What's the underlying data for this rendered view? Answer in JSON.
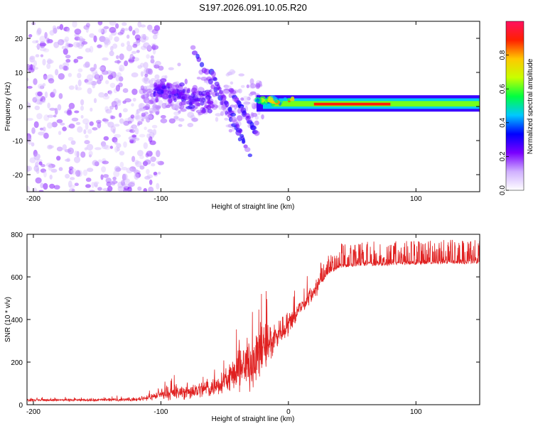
{
  "figure_title": "S197.2026.091.10.05.R20",
  "chart_data": [
    {
      "type": "heatmap",
      "title": "S197.2026.091.10.05.R20",
      "xlabel": "Height of straight line (km)",
      "ylabel": "Frequency (Hz)",
      "xlim": [
        -205,
        150
      ],
      "ylim": [
        -25,
        25
      ],
      "x_ticks": [
        -200,
        -100,
        0,
        100
      ],
      "x_tick_labels": [
        "-200",
        "-100",
        "0",
        "100"
      ],
      "y_ticks": [
        -20,
        -10,
        0,
        10,
        20
      ],
      "y_tick_labels": [
        "-20",
        "-10",
        "0",
        "10",
        "20"
      ],
      "description_data": {
        "carrier_line_frequency_hz": 0.7,
        "carrier_start_km": -25,
        "diffuse_scatter_region_km": [
          -205,
          -110
        ],
        "sloped_streaks": [
          {
            "x_start": -75,
            "f_start": 17,
            "x_end": -30,
            "f_end": -14
          },
          {
            "x_start": -60,
            "f_start": 10,
            "x_end": -35,
            "f_end": -10
          },
          {
            "x_start": -45,
            "f_start": 5,
            "x_end": -25,
            "f_end": -8
          }
        ]
      },
      "colorbar": {
        "label": "Normalized spectral amplitude",
        "min": 0.0,
        "max": 1.0,
        "ticks": [
          0.0,
          0.2,
          0.4,
          0.6,
          0.8
        ],
        "tick_labels": [
          "0.0",
          "0.2",
          "0.4",
          "0.6",
          "0.8"
        ],
        "colormap": [
          "#ffffff",
          "#d0b0ff",
          "#7a00ff",
          "#0000ff",
          "#00c8ff",
          "#00ff40",
          "#c8ff00",
          "#ffc800",
          "#ff2000",
          "#ff1060"
        ]
      }
    },
    {
      "type": "line",
      "xlabel": "Height of straight line (km)",
      "ylabel": "SNR (10 * v/v)",
      "xlim": [
        -205,
        150
      ],
      "ylim": [
        0,
        800
      ],
      "x_ticks": [
        -200,
        -100,
        0,
        100
      ],
      "x_tick_labels": [
        "-200",
        "-100",
        "0",
        "100"
      ],
      "y_ticks": [
        0,
        200,
        400,
        600,
        800
      ],
      "y_tick_labels": [
        "0",
        "200",
        "400",
        "600",
        "800"
      ],
      "series": [
        {
          "name": "SNR",
          "color": "#e02020",
          "envelope_x": [
            -205,
            -150,
            -120,
            -100,
            -80,
            -60,
            -40,
            -30,
            -20,
            -10,
            0,
            10,
            20,
            30,
            40,
            60,
            80,
            100,
            120,
            150
          ],
          "envelope_mean": [
            22,
            22,
            24,
            45,
            60,
            80,
            150,
            200,
            260,
            320,
            380,
            460,
            530,
            620,
            660,
            670,
            672,
            675,
            678,
            680
          ],
          "envelope_spread": [
            10,
            10,
            12,
            35,
            60,
            70,
            130,
            200,
            220,
            120,
            90,
            70,
            60,
            50,
            60,
            60,
            60,
            60,
            60,
            60
          ]
        }
      ]
    }
  ]
}
